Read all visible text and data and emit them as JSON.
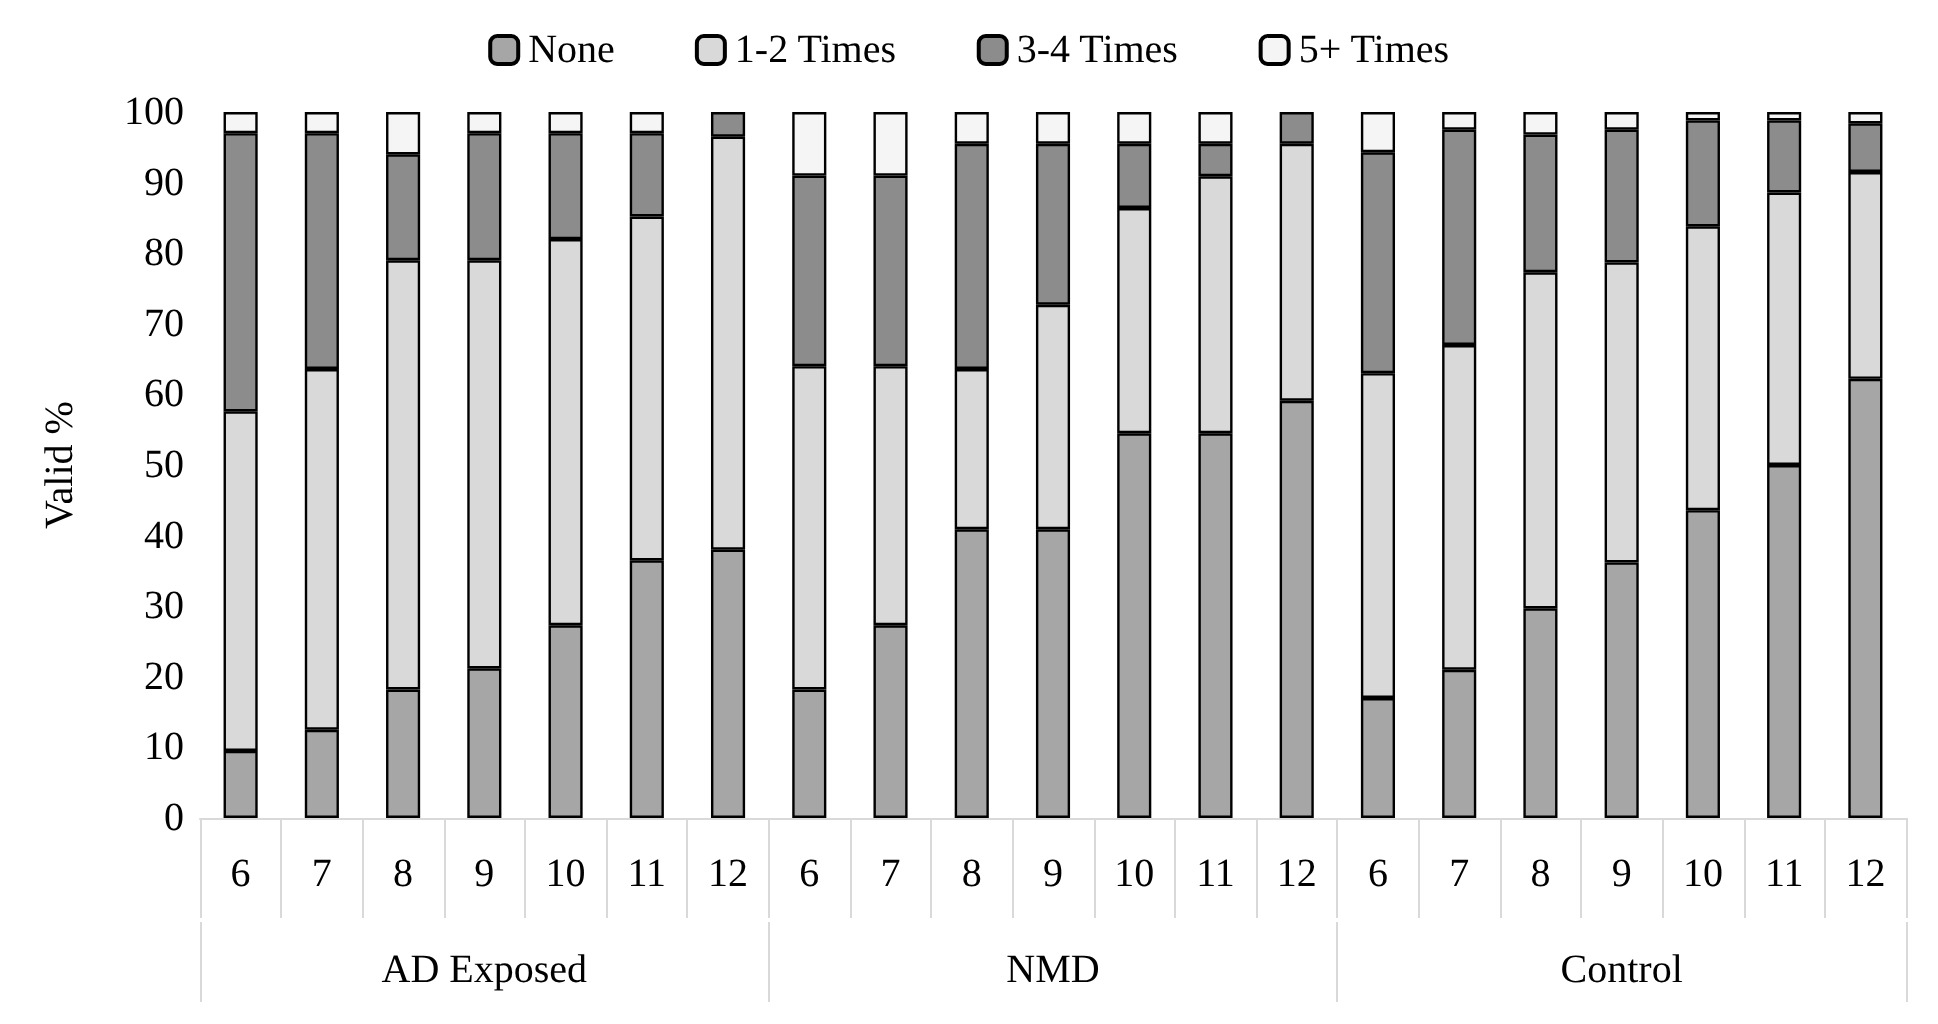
{
  "chart_data": {
    "type": "bar",
    "stacked": true,
    "ylabel": "Valid %",
    "ylim": [
      0,
      100
    ],
    "yticks": [
      0,
      10,
      20,
      30,
      40,
      50,
      60,
      70,
      80,
      90,
      100
    ],
    "grid": false,
    "legend": "top",
    "annotations": [
      "AD Exposed",
      "NMD",
      "Control"
    ],
    "categories": [
      "6",
      "7",
      "8",
      "9",
      "10",
      "11",
      "12",
      "6",
      "7",
      "8",
      "9",
      "10",
      "11",
      "12",
      "6",
      "7",
      "8",
      "9",
      "10",
      "11",
      "12"
    ],
    "series": [
      {
        "name": "None",
        "color": "#a6a6a6",
        "values": [
          9.5,
          12.5,
          18.2,
          21.2,
          27.3,
          36.5,
          38,
          18.2,
          27.3,
          40.9,
          40.9,
          54.5,
          54.5,
          59.1,
          17,
          21,
          29.7,
          36.2,
          43.6,
          50,
          62.2
        ]
      },
      {
        "name": "1-2 Times",
        "color": "#d9d9d9",
        "values": [
          48.1,
          51.1,
          60.8,
          57.8,
          54.7,
          48.7,
          58.5,
          45.8,
          36.7,
          22.7,
          31.8,
          31.9,
          36.4,
          36.4,
          46,
          46,
          47.6,
          42.5,
          40.2,
          38.6,
          29.3
        ]
      },
      {
        "name": "3-4 Times",
        "color": "#8c8c8c",
        "values": [
          39.4,
          33.4,
          15,
          18,
          15,
          11.8,
          3.5,
          27,
          27,
          31.9,
          22.8,
          9.1,
          4.6,
          4.5,
          31.3,
          30.5,
          19.5,
          18.8,
          15,
          10.2,
          6.9
        ]
      },
      {
        "name": "5+ Times",
        "color": "#f5f5f5",
        "values": [
          3,
          3,
          6,
          3,
          3,
          3,
          0,
          9,
          9,
          4.5,
          4.5,
          4.5,
          4.5,
          0,
          5.7,
          2.5,
          3.2,
          2.5,
          1.2,
          1.2,
          1.6
        ]
      }
    ]
  }
}
